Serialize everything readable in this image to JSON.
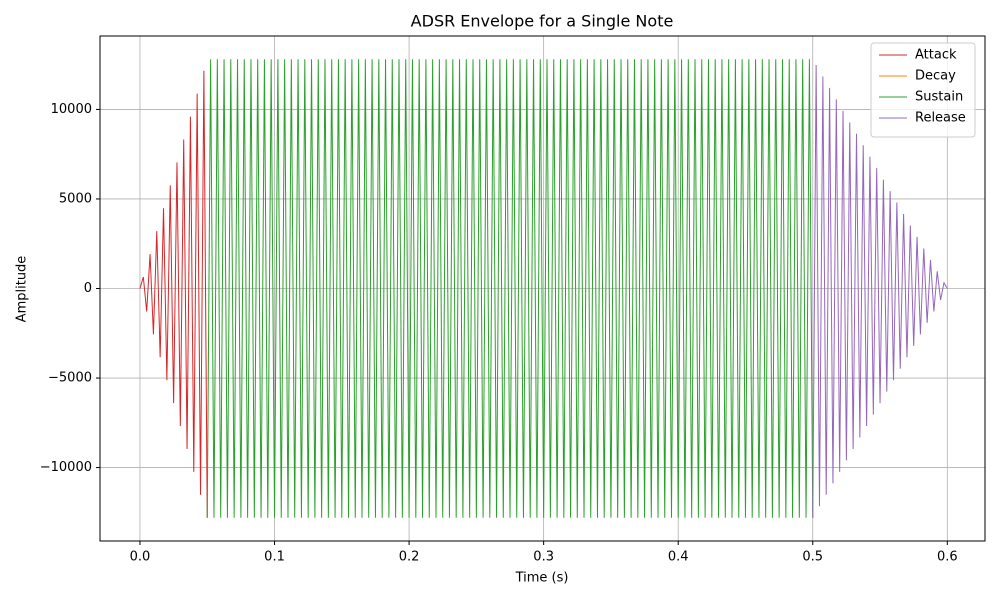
{
  "chart_data": {
    "type": "line",
    "title": "ADSR Envelope for a Single Note",
    "xlabel": "Time (s)",
    "ylabel": "Amplitude",
    "xlim": [
      -0.0297,
      0.628
    ],
    "ylim": [
      -14100,
      14100
    ],
    "xticks": [
      {
        "value": 0,
        "label": "0.0"
      },
      0.1,
      0.2,
      0.3,
      0.4,
      0.5,
      0.6
    ],
    "yticks": [
      {
        "value": -10000,
        "label": "−10000"
      },
      {
        "value": -5000,
        "label": "−5000"
      },
      0,
      5000,
      10000
    ],
    "grid": true,
    "legend": "upper right",
    "series": [
      {
        "name": "Attack",
        "color": "#d62728",
        "x": [
          0,
          0.0025,
          0.005,
          0.0075,
          0.01,
          0.0125,
          0.015,
          0.0175,
          0.02,
          0.0225,
          0.025,
          0.0275,
          0.03,
          0.0325,
          0.035,
          0.0375,
          0.04,
          0.0425,
          0.045,
          0.0475,
          0.05
        ],
        "values": [
          0,
          640,
          -1280,
          1920,
          -2560,
          3200,
          -3840,
          4480,
          -5120,
          5760,
          -6400,
          7040,
          -7680,
          8320,
          -8960,
          9600,
          -10240,
          10880,
          -11520,
          12160,
          -12800
        ]
      },
      {
        "name": "Decay",
        "color": "#ff7f0e",
        "x": [],
        "values": []
      },
      {
        "name": "Sustain",
        "color": "#2ca02c",
        "x": [
          0.05,
          0.0525,
          0.055,
          0.0575,
          0.06,
          0.0625,
          0.065,
          0.0675,
          0.07,
          0.0725,
          0.075,
          0.0775,
          0.08,
          0.0825,
          0.085,
          0.0875,
          0.09,
          0.0925,
          0.095,
          0.0975,
          0.1,
          0.1025,
          0.105,
          0.1075,
          0.11,
          0.1125,
          0.115,
          0.1175,
          0.12,
          0.1225,
          0.125,
          0.1275,
          0.13,
          0.1325,
          0.135,
          0.1375,
          0.14,
          0.1425,
          0.145,
          0.1475,
          0.15,
          0.1525,
          0.155,
          0.1575,
          0.16,
          0.1625,
          0.165,
          0.1675,
          0.17,
          0.1725,
          0.175,
          0.1775,
          0.18,
          0.1825,
          0.185,
          0.1875,
          0.19,
          0.1925,
          0.195,
          0.1975,
          0.2,
          0.2025,
          0.205,
          0.2075,
          0.21,
          0.2125,
          0.215,
          0.2175,
          0.22,
          0.2225,
          0.225,
          0.2275,
          0.23,
          0.2325,
          0.235,
          0.2375,
          0.24,
          0.2425,
          0.245,
          0.2475,
          0.25,
          0.2525,
          0.255,
          0.2575,
          0.26,
          0.2625,
          0.265,
          0.2675,
          0.27,
          0.2725,
          0.275,
          0.2775,
          0.28,
          0.2825,
          0.285,
          0.2875,
          0.29,
          0.2925,
          0.295,
          0.2975,
          0.3,
          0.3025,
          0.305,
          0.3075,
          0.31,
          0.3125,
          0.315,
          0.3175,
          0.32,
          0.3225,
          0.325,
          0.3275,
          0.33,
          0.3325,
          0.335,
          0.3375,
          0.34,
          0.3425,
          0.345,
          0.3475,
          0.35,
          0.3525,
          0.355,
          0.3575,
          0.36,
          0.3625,
          0.365,
          0.3675,
          0.37,
          0.3725,
          0.375,
          0.3775,
          0.38,
          0.3825,
          0.385,
          0.3875,
          0.39,
          0.3925,
          0.395,
          0.3975,
          0.4,
          0.4025,
          0.405,
          0.4075,
          0.41,
          0.4125,
          0.415,
          0.4175,
          0.42,
          0.4225,
          0.425,
          0.4275,
          0.43,
          0.4325,
          0.435,
          0.4375,
          0.44,
          0.4425,
          0.445,
          0.4475,
          0.45,
          0.4525,
          0.455,
          0.4575,
          0.46,
          0.4625,
          0.465,
          0.4675,
          0.47,
          0.4725,
          0.475,
          0.4775,
          0.48,
          0.4825,
          0.485,
          0.4875,
          0.49,
          0.4925,
          0.495,
          0.4975,
          0.5
        ],
        "values": [
          -12800,
          12800,
          -12800,
          12800,
          -12800,
          12800,
          -12800,
          12800,
          -12800,
          12800,
          -12800,
          12800,
          -12800,
          12800,
          -12800,
          12800,
          -12800,
          12800,
          -12800,
          12800,
          -12800,
          12800,
          -12800,
          12800,
          -12800,
          12800,
          -12800,
          12800,
          -12800,
          12800,
          -12800,
          12800,
          -12800,
          12800,
          -12800,
          12800,
          -12800,
          12800,
          -12800,
          12800,
          -12800,
          12800,
          -12800,
          12800,
          -12800,
          12800,
          -12800,
          12800,
          -12800,
          12800,
          -12800,
          12800,
          -12800,
          12800,
          -12800,
          12800,
          -12800,
          12800,
          -12800,
          12800,
          -12800,
          12800,
          -12800,
          12800,
          -12800,
          12800,
          -12800,
          12800,
          -12800,
          12800,
          -12800,
          12800,
          -12800,
          12800,
          -12800,
          12800,
          -12800,
          12800,
          -12800,
          12800,
          -12800,
          12800,
          -12800,
          12800,
          -12800,
          12800,
          -12800,
          12800,
          -12800,
          12800,
          -12800,
          12800,
          -12800,
          12800,
          -12800,
          12800,
          -12800,
          12800,
          -12800,
          12800,
          -12800,
          12800,
          -12800,
          12800,
          -12800,
          12800,
          -12800,
          12800,
          -12800,
          12800,
          -12800,
          12800,
          -12800,
          12800,
          -12800,
          12800,
          -12800,
          12800,
          -12800,
          12800,
          -12800,
          12800,
          -12800,
          12800,
          -12800,
          12800,
          -12800,
          12800,
          -12800,
          12800,
          -12800,
          12800,
          -12800,
          12800,
          -12800,
          12800,
          -12800,
          12800,
          -12800,
          12800,
          -12800,
          12800,
          -12800,
          12800,
          -12800,
          12800,
          -12800,
          12800,
          -12800,
          12800,
          -12800,
          12800,
          -12800,
          12800,
          -12800,
          12800,
          -12800,
          12800,
          -12800,
          12800,
          -12800,
          12800,
          -12800,
          12800,
          -12800,
          12800,
          -12800,
          12800,
          -12800,
          12800,
          -12800,
          12800,
          -12800,
          12800,
          -12800,
          12800,
          -12800,
          12800,
          -12800,
          12800,
          -12800
        ]
      },
      {
        "name": "Release",
        "color": "#9467bd",
        "x": [
          0.5,
          0.5025,
          0.505,
          0.5075,
          0.51,
          0.5125,
          0.515,
          0.5175,
          0.52,
          0.5225,
          0.525,
          0.5275,
          0.53,
          0.5325,
          0.535,
          0.5375,
          0.54,
          0.5425,
          0.545,
          0.5475,
          0.55,
          0.5525,
          0.555,
          0.5575,
          0.56,
          0.5625,
          0.565,
          0.5675,
          0.57,
          0.5725,
          0.575,
          0.5775,
          0.58,
          0.5825,
          0.585,
          0.5875,
          0.59,
          0.5925,
          0.595,
          0.5975,
          0.6
        ],
        "values": [
          -12800,
          12480,
          -12160,
          11840,
          -11520,
          11200,
          -10880,
          10560,
          -10240,
          9920,
          -9600,
          9280,
          -8960,
          8640,
          -8320,
          8000,
          -7680,
          7360,
          -7040,
          6720,
          -6400,
          6080,
          -5760,
          5440,
          -5120,
          4800,
          -4480,
          4160,
          -3840,
          3520,
          -3200,
          2880,
          -2560,
          2240,
          -1920,
          1600,
          -1280,
          960,
          -640,
          320,
          0
        ]
      }
    ]
  }
}
